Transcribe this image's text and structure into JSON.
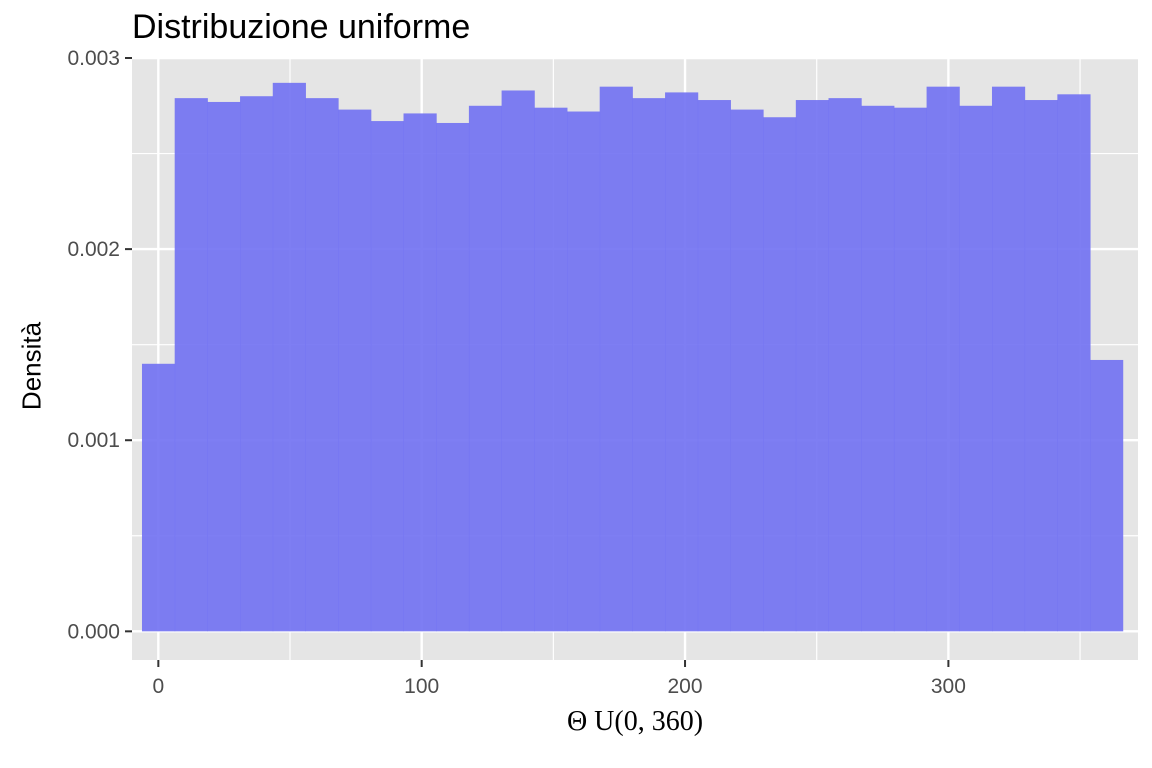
{
  "chart_data": {
    "type": "bar",
    "title": "Distribuzione uniforme",
    "xlabel": "Θ U(0, 360)",
    "ylabel": "Densità",
    "xlim": [
      -10,
      372
    ],
    "ylim": [
      -0.00015,
      0.003
    ],
    "x_ticks": [
      0,
      100,
      200,
      300
    ],
    "y_ticks": [
      0.0,
      0.001,
      0.002,
      0.003
    ],
    "y_tick_labels": [
      "0.000",
      "0.001",
      "0.002",
      "0.003"
    ],
    "x_tick_labels": [
      "0",
      "100",
      "200",
      "300"
    ],
    "grid": true,
    "bar_color": "#7373F2",
    "panel_color": "#E5E5E5",
    "grid_color": "#FFFFFF",
    "bin_width": 12.41,
    "bin_starts": [
      -6.21,
      6.21,
      18.62,
      31.03,
      43.45,
      55.86,
      68.28,
      80.69,
      93.1,
      105.52,
      117.93,
      130.34,
      142.76,
      155.17,
      167.59,
      180.0,
      192.41,
      204.83,
      217.24,
      229.66,
      242.07,
      254.48,
      266.9,
      279.31,
      291.72,
      304.14,
      316.55,
      328.97,
      341.38,
      353.79
    ],
    "values": [
      0.0014,
      0.00279,
      0.00277,
      0.0028,
      0.00287,
      0.00279,
      0.00273,
      0.00267,
      0.00271,
      0.00266,
      0.00275,
      0.00283,
      0.00274,
      0.00272,
      0.00285,
      0.00279,
      0.00282,
      0.00278,
      0.00273,
      0.00269,
      0.00278,
      0.00279,
      0.00275,
      0.00274,
      0.00285,
      0.00275,
      0.00285,
      0.00278,
      0.00281,
      0.00142
    ]
  }
}
